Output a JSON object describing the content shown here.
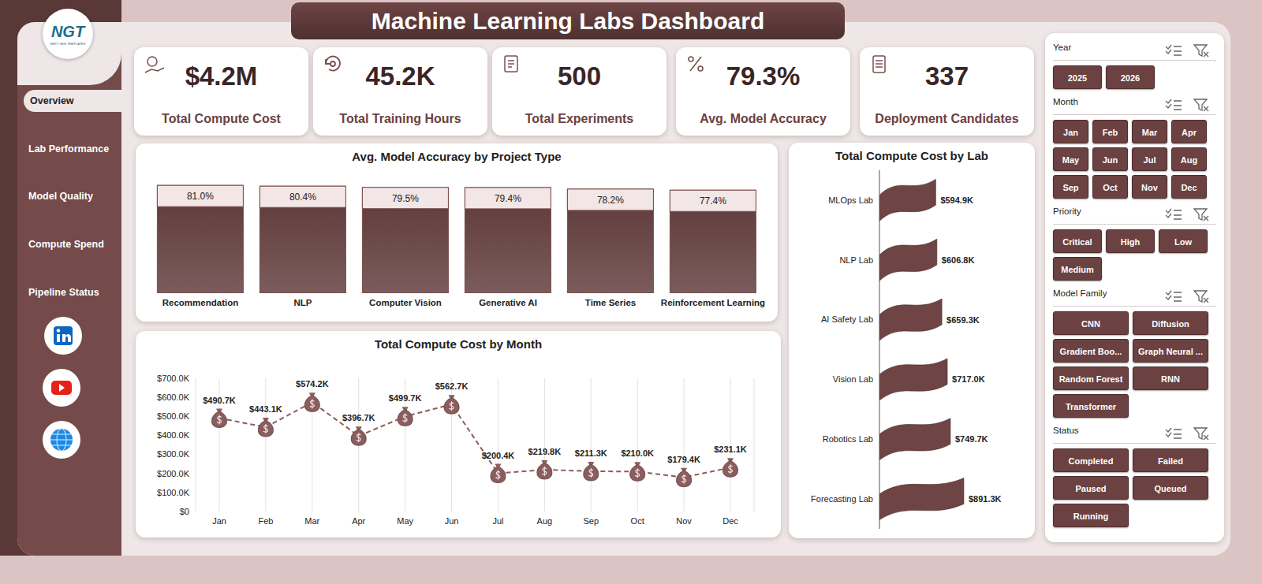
{
  "header": {
    "title": "Machine Learning Labs Dashboard",
    "logo": "NGT",
    "logo_subtitle": "NEXT GEN TEMPLATES"
  },
  "navigation": {
    "active": "Overview",
    "items": [
      "Overview",
      "Lab Performance",
      "Model Quality",
      "Compute Spend",
      "Pipeline Status"
    ]
  },
  "kpis": [
    {
      "value": "$4.2M",
      "label": "Total Compute Cost"
    },
    {
      "value": "45.2K",
      "label": "Total Training Hours"
    },
    {
      "value": "500",
      "label": "Total Experiments"
    },
    {
      "value": "79.3%",
      "label": "Avg. Model Accuracy"
    },
    {
      "value": "337",
      "label": "Deployment Candidates"
    }
  ],
  "chart_data": [
    {
      "type": "bar",
      "title": "Avg. Model Accuracy by Project Type",
      "categories": [
        "Recommendation",
        "NLP",
        "Computer Vision",
        "Generative AI",
        "Time Series",
        "Reinforcement Learning"
      ],
      "values": [
        81.0,
        80.4,
        79.5,
        79.4,
        78.2,
        77.4
      ],
      "value_labels": [
        "81.0%",
        "80.4%",
        "79.5%",
        "79.4%",
        "78.2%",
        "77.4%"
      ],
      "ylim": [
        0,
        90
      ],
      "data_labels": true,
      "tick_labels": "x",
      "color": "#5e3838"
    },
    {
      "type": "line",
      "title": "Total Compute Cost by Month",
      "categories": [
        "Jan",
        "Feb",
        "Mar",
        "Apr",
        "May",
        "Jun",
        "Jul",
        "Aug",
        "Sep",
        "Oct",
        "Nov",
        "Dec"
      ],
      "values": [
        490700,
        443100,
        574200,
        396700,
        499700,
        562700,
        200400,
        219800,
        211300,
        210000,
        179400,
        231100
      ],
      "value_labels": [
        "$490.7K",
        "$443.1K",
        "$574.2K",
        "$396.7K",
        "$499.7K",
        "$562.7K",
        "$200.4K",
        "$219.8K",
        "$211.3K",
        "$210.0K",
        "$179.4K",
        "$231.1K"
      ],
      "ylim": [
        0,
        700000
      ],
      "yticks": [
        {
          "value": 0,
          "label": "$0"
        },
        {
          "value": 100000,
          "label": "$100.0K"
        },
        {
          "value": 200000,
          "label": "$200.0K"
        },
        {
          "value": 300000,
          "label": "$300.0K"
        },
        {
          "value": 400000,
          "label": "$400.0K"
        },
        {
          "value": 500000,
          "label": "$500.0K"
        },
        {
          "value": 600000,
          "label": "$600.0K"
        },
        {
          "value": 700000,
          "label": "$700.0K"
        }
      ],
      "data_labels": true,
      "marker": "money_bag",
      "line_style": "dashed",
      "grid": "x",
      "color": "#8b5d5d"
    },
    {
      "type": "bar",
      "title": "Total Compute Cost by Lab",
      "orientation": "horizontal",
      "categories": [
        "MLOps Lab",
        "NLP Lab",
        "AI Safety Lab",
        "Vision Lab",
        "Robotics Lab",
        "Forecasting Lab"
      ],
      "values": [
        594900,
        606800,
        659300,
        717000,
        749700,
        891300
      ],
      "value_labels": [
        "$594.9K",
        "$606.8K",
        "$659.3K",
        "$717.0K",
        "$749.7K",
        "$891.3K"
      ],
      "xlim": [
        0,
        1100000
      ],
      "data_labels": true,
      "tick_labels": "y",
      "color": "#6e4444"
    }
  ],
  "filters": [
    {
      "title": "Year",
      "options": [
        "2025",
        "2026"
      ]
    },
    {
      "title": "Month",
      "options": [
        "Jan",
        "Feb",
        "Mar",
        "Apr",
        "May",
        "Jun",
        "Jul",
        "Aug",
        "Sep",
        "Oct",
        "Nov",
        "Dec"
      ]
    },
    {
      "title": "Priority",
      "options": [
        "Critical",
        "High",
        "Low",
        "Medium"
      ]
    },
    {
      "title": "Model Family",
      "options": [
        "CNN",
        "Diffusion",
        "Gradient Boo...",
        "Graph Neural ...",
        "Random Forest",
        "RNN",
        "Transformer"
      ]
    },
    {
      "title": "Status",
      "options": [
        "Completed",
        "Failed",
        "Paused",
        "Queued",
        "Running"
      ]
    }
  ]
}
